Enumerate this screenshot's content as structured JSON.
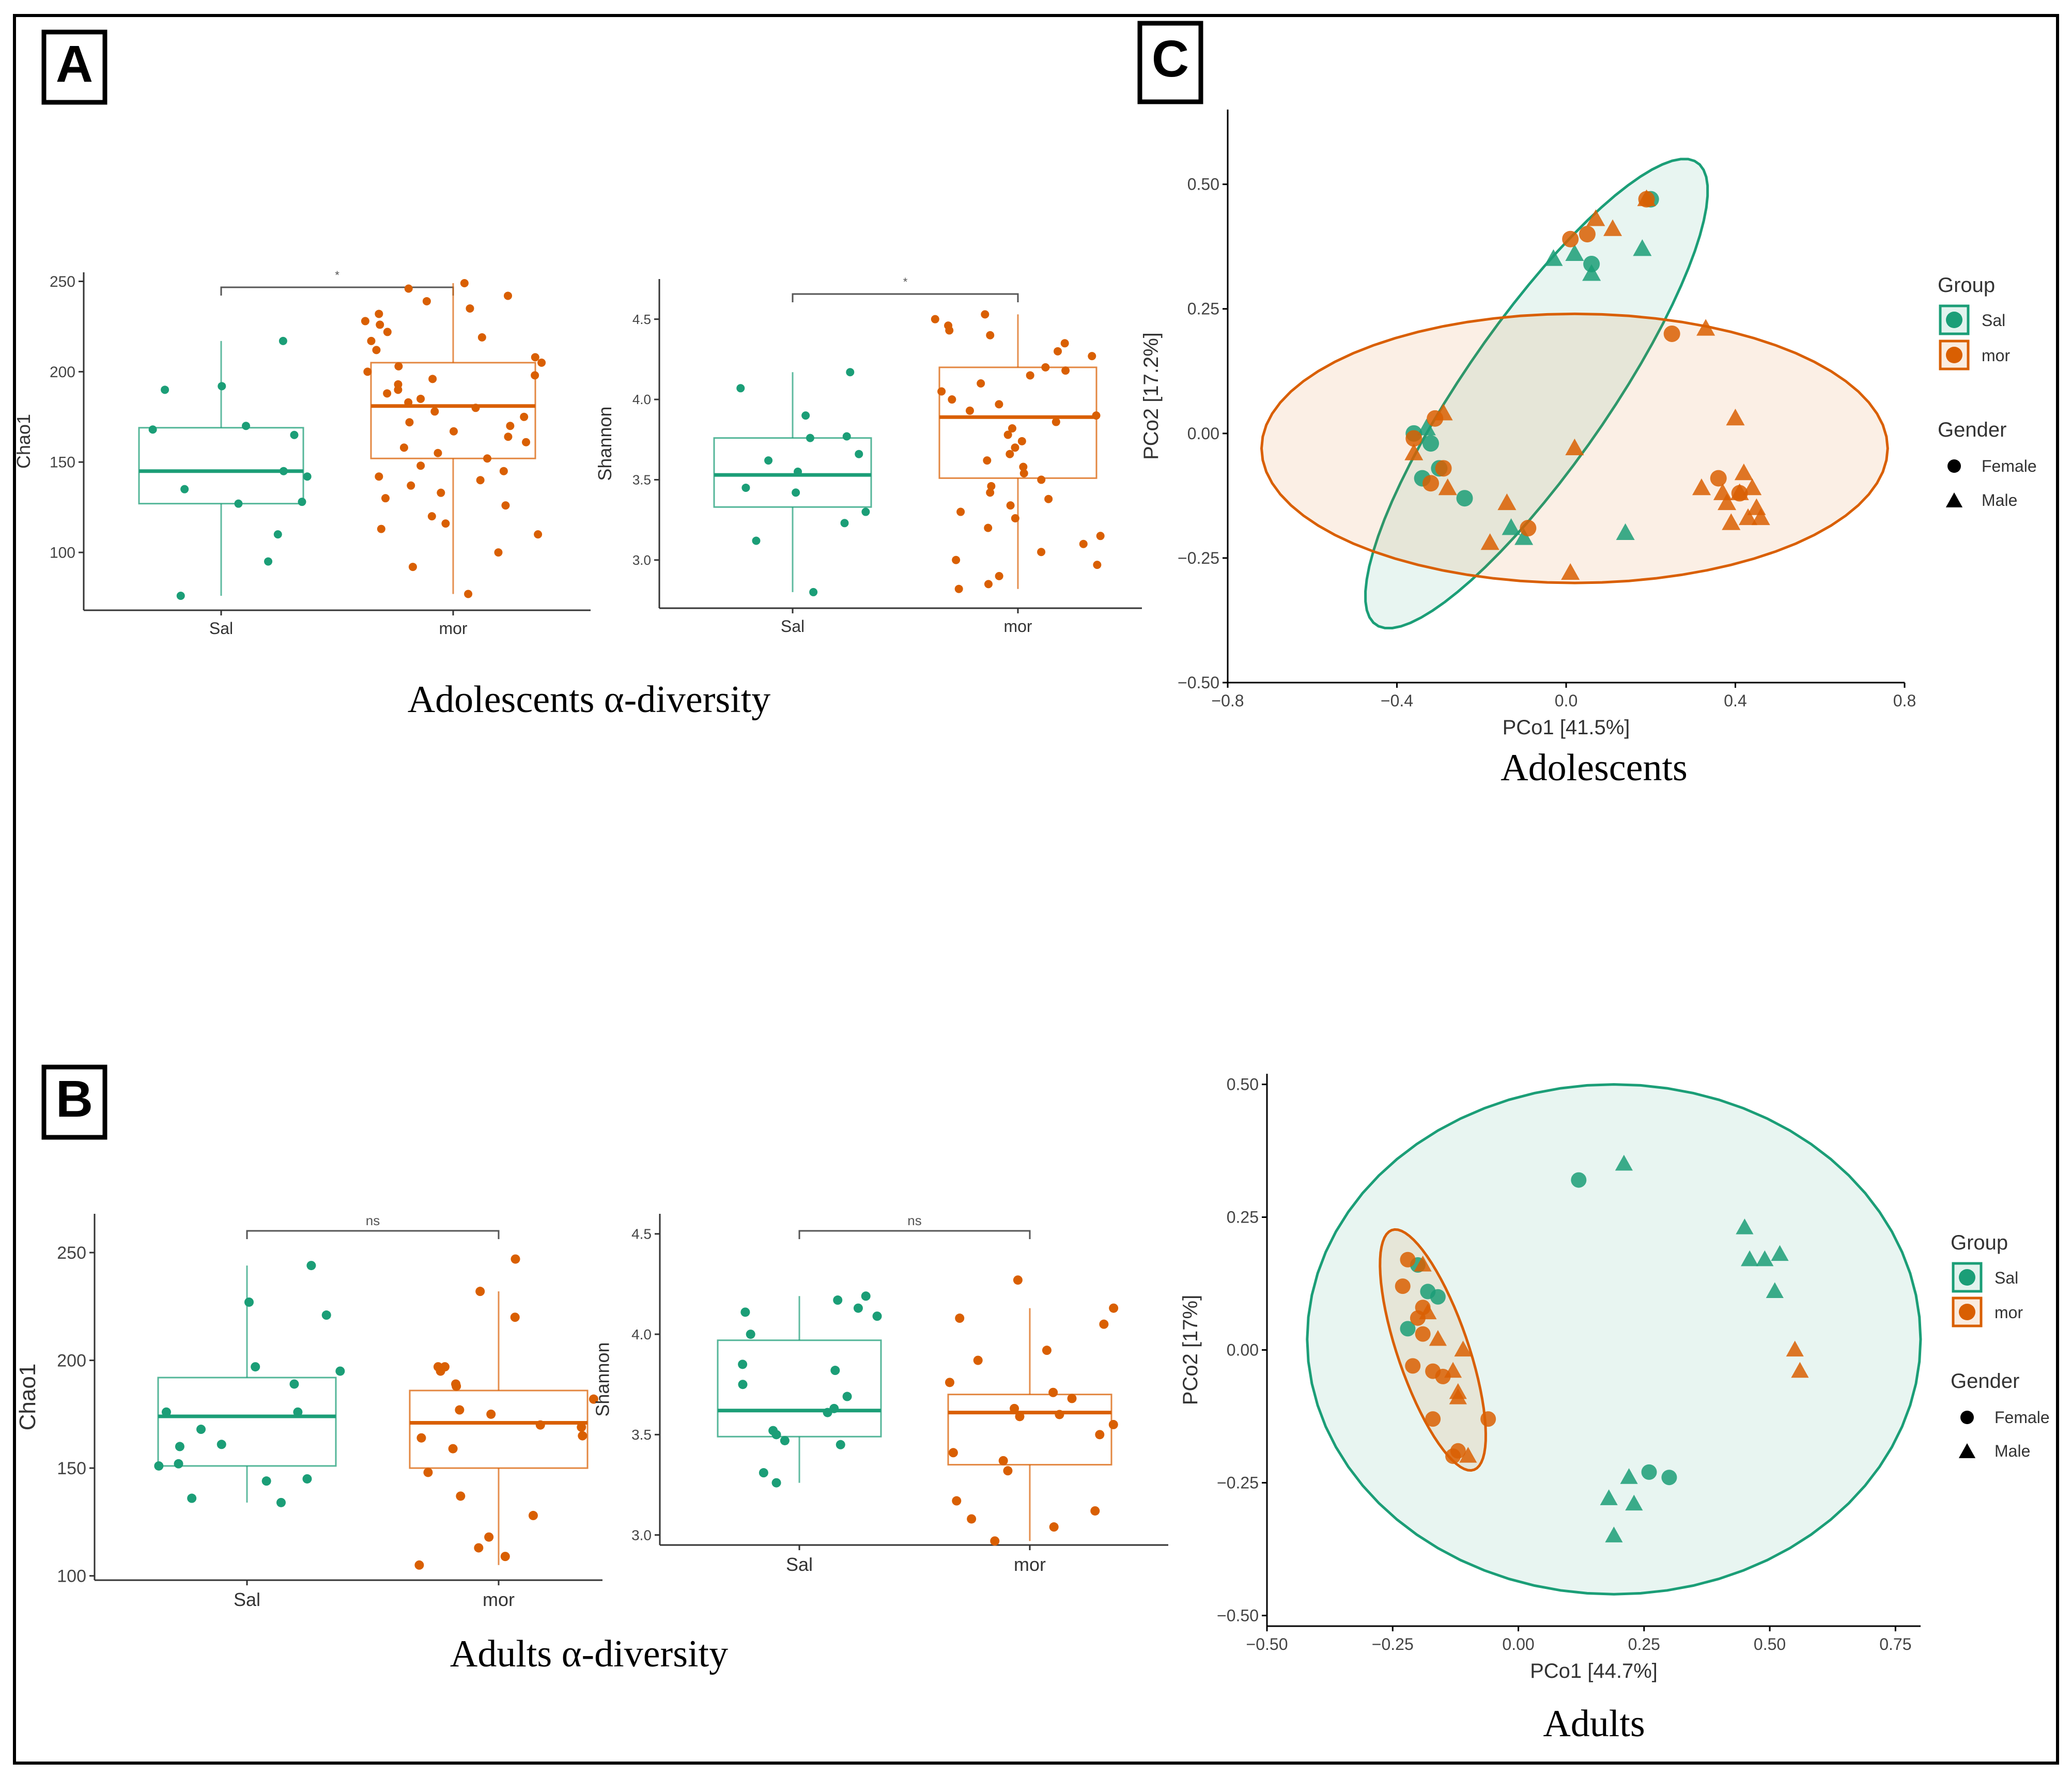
{
  "panels": {
    "A": {
      "label": "A",
      "caption": "Adolescents α-diversity"
    },
    "B": {
      "label": "B",
      "caption": "Adults α-diversity"
    },
    "C": {
      "label": "C",
      "caption_top": "Adolescents",
      "caption_bottom": "Adults"
    }
  },
  "colors": {
    "sal": "#1b9e77",
    "mor": "#d95f02",
    "text": "#333333",
    "frame": "#000000"
  },
  "chart_data": [
    {
      "id": "adol_chao1",
      "type": "box",
      "ylabel": "Chao1",
      "categories": [
        "Sal",
        "mor"
      ],
      "ylim": [
        68,
        255
      ],
      "yticks": [
        100,
        150,
        200,
        250
      ],
      "sig": "*",
      "boxes": [
        {
          "group": "Sal",
          "min": 76,
          "q1": 127,
          "median": 145,
          "q3": 169,
          "max": 217
        },
        {
          "group": "mor",
          "min": 77,
          "q1": 152,
          "median": 181,
          "q3": 205,
          "max": 249
        }
      ],
      "points": [
        {
          "group": "Sal",
          "values": [
            190,
            192,
            217,
            145,
            165,
            168,
            170,
            142,
            135,
            128,
            127,
            110,
            95,
            76
          ]
        },
        {
          "group": "mor",
          "values": [
            249,
            246,
            242,
            239,
            235,
            232,
            228,
            226,
            222,
            219,
            217,
            212,
            208,
            205,
            203,
            200,
            198,
            196,
            193,
            190,
            188,
            185,
            183,
            180,
            178,
            175,
            172,
            170,
            167,
            164,
            161,
            158,
            155,
            152,
            148,
            145,
            142,
            140,
            137,
            133,
            130,
            126,
            120,
            116,
            113,
            110,
            100,
            92,
            77
          ]
        }
      ]
    },
    {
      "id": "adol_shannon",
      "type": "box",
      "ylabel": "Shannon",
      "categories": [
        "Sal",
        "mor"
      ],
      "ylim": [
        2.7,
        4.75
      ],
      "yticks": [
        "3.0",
        "3.5",
        "4.0",
        "4.5"
      ],
      "sig": "*",
      "boxes": [
        {
          "group": "Sal",
          "min": 2.8,
          "q1": 3.33,
          "median": 3.53,
          "q3": 3.76,
          "max": 4.17
        },
        {
          "group": "mor",
          "min": 2.82,
          "q1": 3.51,
          "median": 3.89,
          "q3": 4.2,
          "max": 4.53
        }
      ],
      "points": [
        {
          "group": "Sal",
          "values": [
            4.17,
            4.07,
            3.9,
            3.77,
            3.76,
            3.66,
            3.62,
            3.55,
            3.45,
            3.42,
            3.3,
            3.23,
            3.12,
            2.8
          ]
        },
        {
          "group": "mor",
          "values": [
            4.53,
            4.5,
            4.46,
            4.43,
            4.4,
            4.35,
            4.3,
            4.27,
            4.2,
            4.18,
            4.15,
            4.1,
            4.05,
            4.0,
            3.97,
            3.93,
            3.9,
            3.86,
            3.82,
            3.78,
            3.74,
            3.7,
            3.66,
            3.62,
            3.58,
            3.54,
            3.5,
            3.46,
            3.42,
            3.38,
            3.34,
            3.3,
            3.26,
            3.2,
            3.15,
            3.1,
            3.05,
            3.0,
            2.97,
            2.9,
            2.85,
            2.82
          ]
        }
      ]
    },
    {
      "id": "adult_chao1",
      "type": "box",
      "ylabel": "Chao1",
      "categories": [
        "Sal",
        "mor"
      ],
      "ylim": [
        98,
        268
      ],
      "yticks": [
        100,
        150,
        200,
        250
      ],
      "sig": "ns",
      "boxes": [
        {
          "group": "Sal",
          "min": 134,
          "q1": 151,
          "median": 174,
          "q3": 192,
          "max": 244
        },
        {
          "group": "mor",
          "min": 105,
          "q1": 150,
          "median": 171,
          "q3": 186,
          "max": 232
        }
      ],
      "points": [
        {
          "group": "Sal",
          "values": [
            244,
            227,
            221,
            197,
            195,
            189,
            176,
            176,
            168,
            161,
            160,
            152,
            151,
            145,
            144,
            136,
            134
          ]
        },
        {
          "group": "mor",
          "values": [
            247,
            232,
            220,
            197,
            197,
            195,
            189,
            188,
            182,
            177,
            175,
            170,
            169,
            165,
            164,
            159,
            148,
            137,
            128,
            118,
            113,
            109,
            105
          ]
        }
      ]
    },
    {
      "id": "adult_shannon",
      "type": "box",
      "ylabel": "Shannon",
      "categories": [
        "Sal",
        "mor"
      ],
      "ylim": [
        2.95,
        4.6
      ],
      "yticks": [
        "3.0",
        "3.5",
        "4.0",
        "4.5"
      ],
      "sig": "ns",
      "boxes": [
        {
          "group": "Sal",
          "min": 3.26,
          "q1": 3.49,
          "median": 3.62,
          "q3": 3.97,
          "max": 4.19
        },
        {
          "group": "mor",
          "min": 2.97,
          "q1": 3.35,
          "median": 3.61,
          "q3": 3.7,
          "max": 4.13
        }
      ],
      "points": [
        {
          "group": "Sal",
          "values": [
            4.19,
            4.17,
            4.13,
            4.11,
            4.09,
            4.0,
            3.85,
            3.82,
            3.75,
            3.69,
            3.63,
            3.61,
            3.52,
            3.5,
            3.47,
            3.45,
            3.31,
            3.26
          ]
        },
        {
          "group": "mor",
          "values": [
            4.27,
            4.13,
            4.08,
            4.05,
            3.92,
            3.87,
            3.76,
            3.71,
            3.68,
            3.63,
            3.6,
            3.59,
            3.55,
            3.5,
            3.41,
            3.37,
            3.32,
            3.17,
            3.12,
            3.08,
            3.04,
            2.97
          ]
        }
      ]
    },
    {
      "id": "pcoa_adol",
      "type": "scatter",
      "xlabel": "PCo1 [41.5%]",
      "ylabel": "PCo2 [17.2%]",
      "xlim": [
        -0.8,
        0.8
      ],
      "ylim": [
        -0.5,
        0.65
      ],
      "xticks": [
        "−0.8",
        "−0.4",
        "0.0",
        "0.4",
        "0.8"
      ],
      "yticks": [
        "−0.50",
        "−0.25",
        "0.00",
        "0.25",
        "0.50"
      ],
      "legend": {
        "group_title": "Group",
        "groups": [
          "Sal",
          "mor"
        ],
        "gender_title": "Gender",
        "genders": [
          "Female",
          "Male"
        ]
      },
      "ellipses": [
        {
          "group": "Sal",
          "cx": -0.07,
          "cy": 0.08,
          "semi_a": 0.6,
          "semi_b": 0.16,
          "angle_deg": 50
        },
        {
          "group": "mor",
          "cx": 0.02,
          "cy": -0.03,
          "semi_a": 0.74,
          "semi_b": 0.27,
          "angle_deg": 0
        }
      ],
      "points": [
        {
          "group": "Sal",
          "shape": "circle",
          "x": 0.2,
          "y": 0.47
        },
        {
          "group": "Sal",
          "shape": "circle",
          "x": 0.06,
          "y": 0.34
        },
        {
          "group": "Sal",
          "shape": "circle",
          "x": -0.36,
          "y": 0.0
        },
        {
          "group": "Sal",
          "shape": "circle",
          "x": -0.34,
          "y": -0.09
        },
        {
          "group": "Sal",
          "shape": "circle",
          "x": -0.3,
          "y": -0.07
        },
        {
          "group": "Sal",
          "shape": "circle",
          "x": -0.24,
          "y": -0.13
        },
        {
          "group": "Sal",
          "shape": "circle",
          "x": -0.32,
          "y": -0.02
        },
        {
          "group": "Sal",
          "shape": "triangle",
          "x": -0.03,
          "y": 0.35
        },
        {
          "group": "Sal",
          "shape": "triangle",
          "x": 0.02,
          "y": 0.36
        },
        {
          "group": "Sal",
          "shape": "triangle",
          "x": 0.06,
          "y": 0.32
        },
        {
          "group": "Sal",
          "shape": "triangle",
          "x": 0.18,
          "y": 0.37
        },
        {
          "group": "Sal",
          "shape": "triangle",
          "x": -0.13,
          "y": -0.19
        },
        {
          "group": "Sal",
          "shape": "triangle",
          "x": -0.1,
          "y": -0.21
        },
        {
          "group": "Sal",
          "shape": "triangle",
          "x": 0.14,
          "y": -0.2
        },
        {
          "group": "Sal",
          "shape": "triangle",
          "x": -0.33,
          "y": 0.01
        },
        {
          "group": "mor",
          "shape": "circle",
          "x": 0.19,
          "y": 0.47
        },
        {
          "group": "mor",
          "shape": "circle",
          "x": 0.05,
          "y": 0.4
        },
        {
          "group": "mor",
          "shape": "circle",
          "x": 0.01,
          "y": 0.39
        },
        {
          "group": "mor",
          "shape": "circle",
          "x": 0.25,
          "y": 0.2
        },
        {
          "group": "mor",
          "shape": "circle",
          "x": -0.31,
          "y": 0.03
        },
        {
          "group": "mor",
          "shape": "circle",
          "x": -0.36,
          "y": -0.01
        },
        {
          "group": "mor",
          "shape": "circle",
          "x": -0.29,
          "y": -0.07
        },
        {
          "group": "mor",
          "shape": "circle",
          "x": -0.32,
          "y": -0.1
        },
        {
          "group": "mor",
          "shape": "circle",
          "x": -0.09,
          "y": -0.19
        },
        {
          "group": "mor",
          "shape": "circle",
          "x": 0.36,
          "y": -0.09
        },
        {
          "group": "mor",
          "shape": "circle",
          "x": 0.41,
          "y": -0.12
        },
        {
          "group": "mor",
          "shape": "triangle",
          "x": 0.07,
          "y": 0.43
        },
        {
          "group": "mor",
          "shape": "triangle",
          "x": 0.11,
          "y": 0.41
        },
        {
          "group": "mor",
          "shape": "triangle",
          "x": 0.19,
          "y": 0.47
        },
        {
          "group": "mor",
          "shape": "triangle",
          "x": 0.33,
          "y": 0.21
        },
        {
          "group": "mor",
          "shape": "triangle",
          "x": 0.4,
          "y": 0.03
        },
        {
          "group": "mor",
          "shape": "triangle",
          "x": 0.02,
          "y": -0.03
        },
        {
          "group": "mor",
          "shape": "triangle",
          "x": 0.01,
          "y": -0.28
        },
        {
          "group": "mor",
          "shape": "triangle",
          "x": -0.14,
          "y": -0.14
        },
        {
          "group": "mor",
          "shape": "triangle",
          "x": -0.18,
          "y": -0.22
        },
        {
          "group": "mor",
          "shape": "triangle",
          "x": -0.29,
          "y": 0.04
        },
        {
          "group": "mor",
          "shape": "triangle",
          "x": -0.36,
          "y": -0.04
        },
        {
          "group": "mor",
          "shape": "triangle",
          "x": -0.28,
          "y": -0.11
        },
        {
          "group": "mor",
          "shape": "triangle",
          "x": 0.32,
          "y": -0.11
        },
        {
          "group": "mor",
          "shape": "triangle",
          "x": 0.38,
          "y": -0.14
        },
        {
          "group": "mor",
          "shape": "triangle",
          "x": 0.42,
          "y": -0.08
        },
        {
          "group": "mor",
          "shape": "triangle",
          "x": 0.45,
          "y": -0.15
        },
        {
          "group": "mor",
          "shape": "triangle",
          "x": 0.39,
          "y": -0.18
        },
        {
          "group": "mor",
          "shape": "triangle",
          "x": 0.43,
          "y": -0.17
        },
        {
          "group": "mor",
          "shape": "triangle",
          "x": 0.46,
          "y": -0.17
        },
        {
          "group": "mor",
          "shape": "triangle",
          "x": 0.41,
          "y": -0.12
        },
        {
          "group": "mor",
          "shape": "triangle",
          "x": 0.37,
          "y": -0.12
        },
        {
          "group": "mor",
          "shape": "triangle",
          "x": 0.44,
          "y": -0.11
        }
      ]
    },
    {
      "id": "pcoa_adult",
      "type": "scatter",
      "xlabel": "PCo1 [44.7%]",
      "ylabel": "PCo2 [17%]",
      "xlim": [
        -0.5,
        0.8
      ],
      "ylim": [
        -0.52,
        0.52
      ],
      "xticks": [
        "−0.50",
        "−0.25",
        "0.00",
        "0.25",
        "0.50",
        "0.75"
      ],
      "yticks": [
        "−0.50",
        "−0.25",
        "0.00",
        "0.25",
        "0.50"
      ],
      "legend": {
        "group_title": "Group",
        "groups": [
          "Sal",
          "mor"
        ],
        "gender_title": "Gender",
        "genders": [
          "Female",
          "Male"
        ]
      },
      "ellipses": [
        {
          "group": "Sal",
          "cx": 0.19,
          "cy": 0.02,
          "semi_a": 0.61,
          "semi_b": 0.48,
          "angle_deg": 0
        },
        {
          "group": "mor",
          "cx": -0.17,
          "cy": 0.0,
          "semi_a": 0.24,
          "semi_b": 0.07,
          "angle_deg": -70
        }
      ],
      "points": [
        {
          "group": "Sal",
          "shape": "circle",
          "x": 0.12,
          "y": 0.32
        },
        {
          "group": "Sal",
          "shape": "circle",
          "x": 0.26,
          "y": -0.23
        },
        {
          "group": "Sal",
          "shape": "circle",
          "x": 0.3,
          "y": -0.24
        },
        {
          "group": "Sal",
          "shape": "circle",
          "x": -0.2,
          "y": 0.16
        },
        {
          "group": "Sal",
          "shape": "circle",
          "x": -0.18,
          "y": 0.11
        },
        {
          "group": "Sal",
          "shape": "circle",
          "x": -0.16,
          "y": 0.1
        },
        {
          "group": "Sal",
          "shape": "circle",
          "x": -0.22,
          "y": 0.04
        },
        {
          "group": "Sal",
          "shape": "triangle",
          "x": 0.21,
          "y": 0.35
        },
        {
          "group": "Sal",
          "shape": "triangle",
          "x": 0.45,
          "y": 0.23
        },
        {
          "group": "Sal",
          "shape": "triangle",
          "x": 0.46,
          "y": 0.17
        },
        {
          "group": "Sal",
          "shape": "triangle",
          "x": 0.49,
          "y": 0.17
        },
        {
          "group": "Sal",
          "shape": "triangle",
          "x": 0.52,
          "y": 0.18
        },
        {
          "group": "Sal",
          "shape": "triangle",
          "x": 0.51,
          "y": 0.11
        },
        {
          "group": "Sal",
          "shape": "triangle",
          "x": 0.22,
          "y": -0.24
        },
        {
          "group": "Sal",
          "shape": "triangle",
          "x": 0.18,
          "y": -0.28
        },
        {
          "group": "Sal",
          "shape": "triangle",
          "x": 0.23,
          "y": -0.29
        },
        {
          "group": "Sal",
          "shape": "triangle",
          "x": 0.19,
          "y": -0.35
        },
        {
          "group": "mor",
          "shape": "circle",
          "x": -0.22,
          "y": 0.17
        },
        {
          "group": "mor",
          "shape": "circle",
          "x": -0.23,
          "y": 0.12
        },
        {
          "group": "mor",
          "shape": "circle",
          "x": -0.19,
          "y": 0.08
        },
        {
          "group": "mor",
          "shape": "circle",
          "x": -0.2,
          "y": 0.06
        },
        {
          "group": "mor",
          "shape": "circle",
          "x": -0.19,
          "y": 0.03
        },
        {
          "group": "mor",
          "shape": "circle",
          "x": -0.21,
          "y": -0.03
        },
        {
          "group": "mor",
          "shape": "circle",
          "x": -0.17,
          "y": -0.04
        },
        {
          "group": "mor",
          "shape": "circle",
          "x": -0.15,
          "y": -0.05
        },
        {
          "group": "mor",
          "shape": "circle",
          "x": -0.17,
          "y": -0.13
        },
        {
          "group": "mor",
          "shape": "circle",
          "x": -0.06,
          "y": -0.13
        },
        {
          "group": "mor",
          "shape": "circle",
          "x": -0.12,
          "y": -0.19
        },
        {
          "group": "mor",
          "shape": "circle",
          "x": -0.13,
          "y": -0.2
        },
        {
          "group": "mor",
          "shape": "triangle",
          "x": -0.19,
          "y": 0.16
        },
        {
          "group": "mor",
          "shape": "triangle",
          "x": -0.18,
          "y": 0.07
        },
        {
          "group": "mor",
          "shape": "triangle",
          "x": -0.11,
          "y": 0.0
        },
        {
          "group": "mor",
          "shape": "triangle",
          "x": -0.13,
          "y": -0.04
        },
        {
          "group": "mor",
          "shape": "triangle",
          "x": -0.12,
          "y": -0.08
        },
        {
          "group": "mor",
          "shape": "triangle",
          "x": -0.12,
          "y": -0.09
        },
        {
          "group": "mor",
          "shape": "triangle",
          "x": -0.1,
          "y": -0.2
        },
        {
          "group": "mor",
          "shape": "triangle",
          "x": -0.16,
          "y": 0.02
        },
        {
          "group": "mor",
          "shape": "triangle",
          "x": 0.55,
          "y": 0.0
        },
        {
          "group": "mor",
          "shape": "triangle",
          "x": 0.56,
          "y": -0.04
        }
      ]
    }
  ]
}
